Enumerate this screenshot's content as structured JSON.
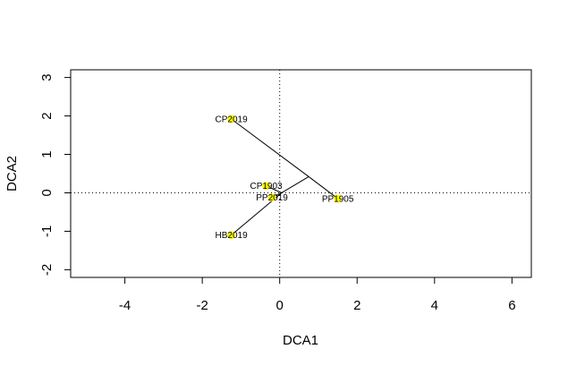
{
  "chart_data": {
    "type": "scatter",
    "title": "",
    "xlabel": "DCA1",
    "ylabel": "DCA2",
    "xlim": [
      -5.4,
      6.5
    ],
    "ylim": [
      -2.2,
      3.2
    ],
    "x_ticks": [
      -4,
      -2,
      0,
      2,
      4,
      6
    ],
    "y_ticks": [
      -2,
      -1,
      0,
      1,
      2,
      3
    ],
    "reference_lines": {
      "x": 0,
      "y": 0,
      "style": "dotted"
    },
    "point_color": "#ffff00",
    "line_color": "#000000",
    "points": [
      {
        "label": "CP2019",
        "x": -1.25,
        "y": 1.92
      },
      {
        "label": "CP1903",
        "x": -0.35,
        "y": 0.18
      },
      {
        "label": "PP2019",
        "x": -0.2,
        "y": -0.12
      },
      {
        "label": "PP1905",
        "x": 1.5,
        "y": -0.15
      },
      {
        "label": "HB2019",
        "x": -1.25,
        "y": -1.1
      }
    ],
    "junctions": [
      {
        "id": "A",
        "x": 0.75,
        "y": 0.42
      },
      {
        "id": "B",
        "x": 0.05,
        "y": 0.0
      }
    ],
    "segments": [
      [
        "CP2019",
        "A"
      ],
      [
        "PP1905",
        "A"
      ],
      [
        "A",
        "B"
      ],
      [
        "B",
        "CP1903"
      ],
      [
        "B",
        "PP2019"
      ],
      [
        "B",
        "HB2019"
      ]
    ]
  }
}
